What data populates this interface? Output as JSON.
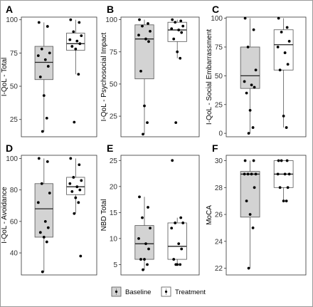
{
  "legend": {
    "items": [
      {
        "label": "Baseline",
        "fill": "#d3d3d3"
      },
      {
        "label": "Treatment",
        "fill": "#ffffff"
      }
    ]
  },
  "colors": {
    "baseline_fill": "#d3d3d3",
    "treatment_fill": "#ffffff",
    "outline": "#555555",
    "point": "#000000"
  },
  "chart_data": [
    {
      "letter": "A",
      "type": "box",
      "ylabel": "I-QoL - Total",
      "ylim": [
        12,
        102
      ],
      "yticks": [
        25,
        50,
        75,
        100
      ],
      "grid": false,
      "groups": [
        {
          "name": "Baseline",
          "q1": 55,
          "median": 68,
          "q3": 80,
          "whisker_low": 16,
          "whisker_high": 98,
          "points": [
            98,
            95,
            78,
            75,
            73,
            70,
            65,
            57,
            43,
            26,
            16
          ]
        },
        {
          "name": "Treatment",
          "q1": 77,
          "median": 82,
          "q3": 90,
          "whisker_low": 59,
          "whisker_high": 100,
          "points": [
            100,
            98,
            91,
            88,
            85,
            84,
            82,
            80,
            78,
            59,
            23
          ]
        }
      ]
    },
    {
      "letter": "B",
      "type": "box",
      "ylabel": "I-QoL - Psychosocial Impact",
      "ylim": [
        9,
        102
      ],
      "yticks": [
        25,
        50,
        75,
        100
      ],
      "grid": false,
      "groups": [
        {
          "name": "Baseline",
          "q1": 54,
          "median": 85,
          "q3": 96,
          "whisker_low": 11,
          "whisker_high": 100,
          "points": [
            100,
            97,
            95,
            91,
            88,
            85,
            83,
            60,
            33,
            20,
            11
          ]
        },
        {
          "name": "Treatment",
          "q1": 83,
          "median": 92,
          "q3": 98,
          "whisker_low": 70,
          "whisker_high": 100,
          "points": [
            100,
            99,
            98,
            95,
            93,
            92,
            90,
            85,
            75,
            70,
            20
          ]
        }
      ]
    },
    {
      "letter": "C",
      "type": "box",
      "ylabel": "I-QoL - Social Embarrassment",
      "ylim": [
        -3,
        101
      ],
      "yticks": [
        0,
        25,
        50,
        75,
        100
      ],
      "grid": false,
      "groups": [
        {
          "name": "Baseline",
          "q1": 39,
          "median": 50,
          "q3": 75,
          "whisker_low": 0,
          "whisker_high": 100,
          "points": [
            100,
            90,
            75,
            55,
            45,
            42,
            40,
            35,
            20,
            5,
            0
          ]
        },
        {
          "name": "Treatment",
          "q1": 55,
          "median": 77,
          "q3": 90,
          "whisker_low": 5,
          "whisker_high": 100,
          "points": [
            100,
            92,
            88,
            80,
            75,
            70,
            60,
            55,
            15,
            5
          ]
        }
      ]
    },
    {
      "letter": "D",
      "type": "box",
      "ylabel": "I-QoL - Avoidance",
      "ylim": [
        26,
        102
      ],
      "yticks": [
        40,
        60,
        80,
        100
      ],
      "grid": false,
      "groups": [
        {
          "name": "Baseline",
          "q1": 50,
          "median": 68,
          "q3": 84,
          "whisker_low": 28,
          "whisker_high": 100,
          "points": [
            100,
            98,
            84,
            78,
            72,
            60,
            56,
            53,
            50,
            47,
            28
          ]
        },
        {
          "name": "Treatment",
          "q1": 77,
          "median": 82,
          "q3": 88,
          "whisker_low": 65,
          "whisker_high": 100,
          "points": [
            100,
            96,
            88,
            86,
            84,
            82,
            80,
            79,
            75,
            72,
            65,
            38
          ]
        }
      ]
    },
    {
      "letter": "E",
      "type": "box",
      "ylabel": "NBD Total",
      "ylim": [
        3,
        26
      ],
      "yticks": [
        5,
        10,
        15,
        20,
        25
      ],
      "grid": false,
      "groups": [
        {
          "name": "Baseline",
          "q1": 6,
          "median": 9,
          "q3": 12.5,
          "whisker_low": 4,
          "whisker_high": 18,
          "points": [
            18,
            16,
            14,
            12,
            10,
            9,
            8,
            6,
            6,
            5,
            4
          ]
        },
        {
          "name": "Treatment",
          "q1": 6,
          "median": 8.5,
          "q3": 13,
          "whisker_low": 5,
          "whisker_high": 14,
          "points": [
            25,
            14,
            13,
            13,
            12,
            9,
            8,
            6,
            5,
            5,
            5
          ]
        }
      ]
    },
    {
      "letter": "F",
      "type": "box",
      "ylabel": "MoCA",
      "ylim": [
        21.5,
        30.4
      ],
      "yticks": [
        22,
        24,
        26,
        28,
        30
      ],
      "grid": false,
      "groups": [
        {
          "name": "Baseline",
          "q1": 25.8,
          "median": 29,
          "q3": 29.2,
          "whisker_low": 22,
          "whisker_high": 30,
          "points": [
            30,
            30,
            29,
            29,
            29,
            29,
            28,
            27,
            26,
            25,
            22
          ]
        },
        {
          "name": "Treatment",
          "q1": 28,
          "median": 29,
          "q3": 30,
          "whisker_low": 27,
          "whisker_high": 30,
          "points": [
            30,
            30,
            30,
            29,
            29,
            29,
            28,
            28,
            27,
            27
          ]
        }
      ]
    }
  ]
}
